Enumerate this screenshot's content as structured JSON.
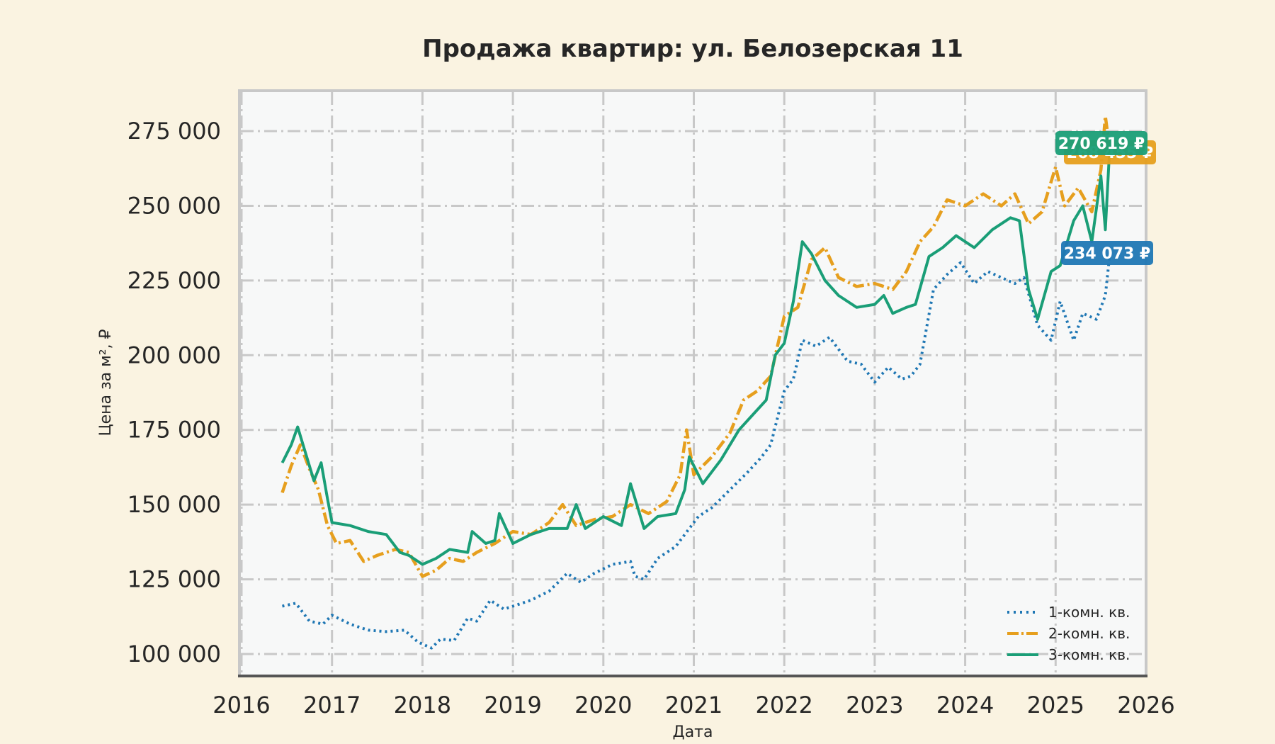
{
  "chart_data": {
    "type": "line",
    "title": "Продажа квартир: ул. Белозерская 11",
    "xlabel": "Дата",
    "ylabel": "Цена за м², ₽",
    "xlim": [
      2016,
      2026
    ],
    "ylim": [
      95000,
      287000
    ],
    "x_ticks": [
      "2016",
      "2017",
      "2018",
      "2019",
      "2020",
      "2021",
      "2022",
      "2023",
      "2024",
      "2025",
      "2026"
    ],
    "y_ticks": [
      "100 000",
      "125 000",
      "150 000",
      "175 000",
      "200 000",
      "225 000",
      "250 000",
      "275 000"
    ],
    "y_tick_values": [
      100000,
      125000,
      150000,
      175000,
      200000,
      225000,
      250000,
      275000
    ],
    "grid": true,
    "legend_position": "lower right",
    "series": [
      {
        "name": "1-комн. кв.",
        "color": "#1f77b4",
        "style": "dotted",
        "x": [
          2016.45,
          2016.6,
          2016.75,
          2016.9,
          2017.0,
          2017.2,
          2017.4,
          2017.6,
          2017.8,
          2017.95,
          2018.1,
          2018.2,
          2018.35,
          2018.5,
          2018.6,
          2018.75,
          2018.9,
          2019.0,
          2019.2,
          2019.4,
          2019.6,
          2019.75,
          2019.9,
          2020.1,
          2020.3,
          2020.35,
          2020.45,
          2020.6,
          2020.8,
          2020.95,
          2021.05,
          2021.2,
          2021.4,
          2021.6,
          2021.75,
          2021.85,
          2022.0,
          2022.1,
          2022.2,
          2022.35,
          2022.5,
          2022.7,
          2022.85,
          2023.0,
          2023.15,
          2023.3,
          2023.4,
          2023.5,
          2023.65,
          2023.8,
          2023.95,
          2024.1,
          2024.25,
          2024.4,
          2024.55,
          2024.65,
          2024.8,
          2024.95,
          2025.05,
          2025.2,
          2025.3,
          2025.45,
          2025.55,
          2025.6
        ],
        "y": [
          116000,
          117000,
          111000,
          110000,
          113000,
          110000,
          108000,
          107500,
          108000,
          104000,
          102000,
          105000,
          104500,
          112000,
          111000,
          118000,
          115000,
          116000,
          118000,
          121000,
          127000,
          124000,
          127000,
          130000,
          131000,
          126000,
          125000,
          132000,
          136000,
          142000,
          146000,
          149000,
          155000,
          161000,
          166000,
          170000,
          188000,
          192000,
          205000,
          203000,
          206000,
          198000,
          197000,
          191000,
          196000,
          192000,
          193000,
          197000,
          222000,
          227000,
          231000,
          224000,
          228000,
          226000,
          224000,
          226000,
          210000,
          205000,
          218000,
          205000,
          214000,
          212000,
          220000,
          234073
        ]
      },
      {
        "name": "2-комн. кв.",
        "color": "#e69f1e",
        "style": "dashed",
        "x": [
          2016.45,
          2016.55,
          2016.65,
          2016.75,
          2016.85,
          2016.95,
          2017.05,
          2017.2,
          2017.35,
          2017.5,
          2017.7,
          2017.85,
          2018.0,
          2018.15,
          2018.3,
          2018.45,
          2018.6,
          2018.8,
          2019.0,
          2019.2,
          2019.4,
          2019.55,
          2019.7,
          2019.9,
          2020.1,
          2020.3,
          2020.5,
          2020.7,
          2020.85,
          2020.92,
          2021.0,
          2021.2,
          2021.4,
          2021.55,
          2021.7,
          2021.85,
          2022.0,
          2022.15,
          2022.3,
          2022.45,
          2022.6,
          2022.8,
          2023.0,
          2023.2,
          2023.35,
          2023.5,
          2023.65,
          2023.8,
          2024.0,
          2024.2,
          2024.4,
          2024.55,
          2024.7,
          2024.85,
          2025.0,
          2025.1,
          2025.25,
          2025.4,
          2025.5,
          2025.55,
          2025.6
        ],
        "y": [
          154000,
          163000,
          170000,
          162000,
          155000,
          143000,
          137000,
          138000,
          131000,
          133000,
          135000,
          134000,
          126000,
          128000,
          132000,
          131000,
          134000,
          137000,
          141000,
          140000,
          144000,
          150000,
          143000,
          145000,
          146000,
          150000,
          147000,
          151000,
          160000,
          175000,
          160000,
          166000,
          174000,
          185000,
          188000,
          193000,
          213000,
          216000,
          232000,
          236000,
          226000,
          223000,
          224000,
          222000,
          228000,
          238000,
          243000,
          252000,
          250000,
          254000,
          250000,
          254000,
          244000,
          248000,
          263000,
          250000,
          256000,
          248000,
          262000,
          280000,
          268455
        ]
      },
      {
        "name": "3-комн. кв.",
        "color": "#1a9e77",
        "style": "solid",
        "x": [
          2016.45,
          2016.55,
          2016.62,
          2016.7,
          2016.8,
          2016.88,
          2016.95,
          2017.0,
          2017.2,
          2017.4,
          2017.6,
          2017.75,
          2017.85,
          2018.0,
          2018.15,
          2018.3,
          2018.5,
          2018.55,
          2018.7,
          2018.8,
          2018.85,
          2019.0,
          2019.2,
          2019.4,
          2019.6,
          2019.7,
          2019.8,
          2020.0,
          2020.2,
          2020.3,
          2020.45,
          2020.6,
          2020.8,
          2020.9,
          2020.95,
          2021.1,
          2021.3,
          2021.5,
          2021.65,
          2021.8,
          2021.9,
          2022.0,
          2022.1,
          2022.2,
          2022.3,
          2022.45,
          2022.6,
          2022.8,
          2023.0,
          2023.1,
          2023.2,
          2023.35,
          2023.45,
          2023.6,
          2023.75,
          2023.9,
          2024.1,
          2024.3,
          2024.5,
          2024.6,
          2024.7,
          2024.8,
          2024.95,
          2025.05,
          2025.2,
          2025.3,
          2025.4,
          2025.5,
          2025.55,
          2025.6
        ],
        "y": [
          164000,
          170000,
          176000,
          168000,
          158000,
          164000,
          152000,
          144000,
          143000,
          141000,
          140000,
          134000,
          133000,
          130000,
          132000,
          135000,
          134000,
          141000,
          137000,
          138000,
          147000,
          137000,
          140000,
          142000,
          142000,
          150000,
          142000,
          146000,
          143000,
          157000,
          142000,
          146000,
          147000,
          155000,
          166000,
          157000,
          165000,
          175000,
          180000,
          185000,
          200000,
          204000,
          218000,
          238000,
          234000,
          225000,
          220000,
          216000,
          217000,
          220000,
          214000,
          216000,
          217000,
          233000,
          236000,
          240000,
          236000,
          242000,
          246000,
          245000,
          222000,
          212000,
          228000,
          230000,
          245000,
          250000,
          238000,
          260000,
          242000,
          270619
        ]
      }
    ],
    "annotations": [
      {
        "series": "3-комн. кв.",
        "text": "270 619 ₽",
        "value": 270619,
        "color": "#1a9e77"
      },
      {
        "series": "2-комн. кв.",
        "text": "268 455 ₽",
        "value": 268455,
        "color": "#e69f1e"
      },
      {
        "series": "1-комн. кв.",
        "text": "234 073 ₽",
        "value": 234073,
        "color": "#1f77b4"
      }
    ]
  },
  "colors": {
    "page_background": "#faf3e1",
    "plot_background": "#f7f8f8",
    "frame": "#c8c8c8",
    "bottom_spine": "#555555",
    "text": "#262626"
  }
}
